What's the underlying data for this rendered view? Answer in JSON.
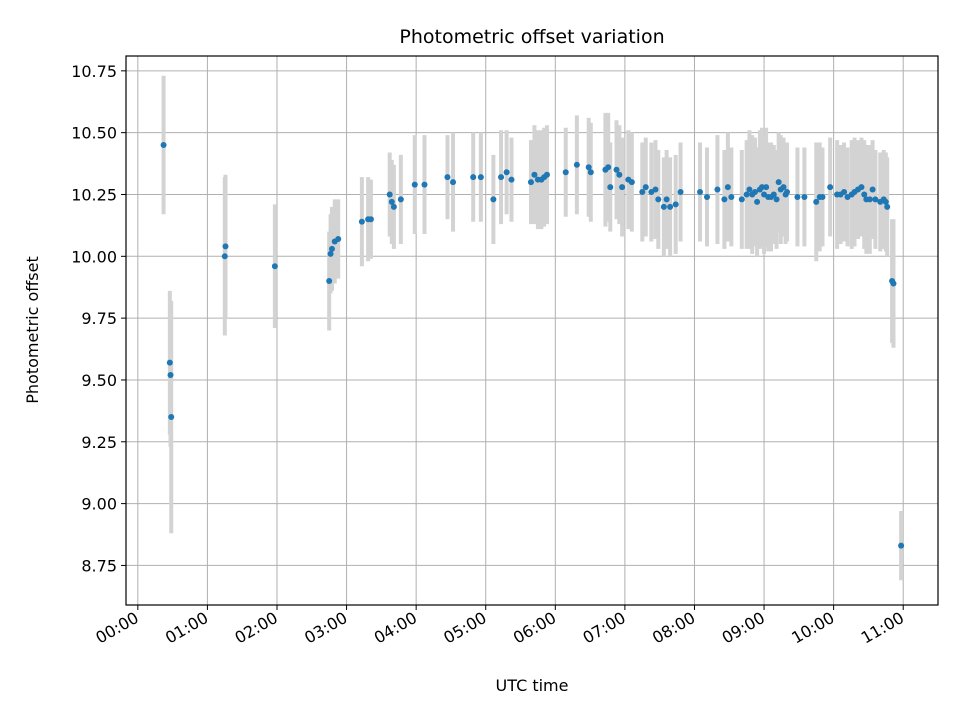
{
  "chart_data": {
    "type": "scatter",
    "title": "Photometric offset variation",
    "xlabel": "UTC time",
    "ylabel": "Photometric offset",
    "x_unit": "hours (UTC)",
    "xlim": [
      -0.17,
      11.5
    ],
    "ylim": [
      8.59,
      10.81
    ],
    "x_ticks": [
      0,
      1,
      2,
      3,
      4,
      5,
      6,
      7,
      8,
      9,
      10,
      11
    ],
    "x_tick_labels": [
      "00:00",
      "01:00",
      "02:00",
      "03:00",
      "04:00",
      "05:00",
      "06:00",
      "07:00",
      "08:00",
      "09:00",
      "10:00",
      "11:00"
    ],
    "y_ticks": [
      8.75,
      9.0,
      9.25,
      9.5,
      9.75,
      10.0,
      10.25,
      10.5,
      10.75
    ],
    "y_tick_labels": [
      "8.75",
      "9.00",
      "9.25",
      "9.50",
      "9.75",
      "10.00",
      "10.25",
      "10.50",
      "10.75"
    ],
    "grid": true,
    "marker_color": "#1f77b4",
    "errorbar_color": "#d3d3d3",
    "series": [
      {
        "points": [
          [
            0.37,
            10.45,
            0.28
          ],
          [
            0.46,
            9.57,
            0.29
          ],
          [
            0.47,
            9.52,
            0.29
          ],
          [
            0.48,
            9.35,
            0.47
          ],
          [
            1.25,
            10.0,
            0.32
          ],
          [
            1.26,
            10.04,
            0.29
          ],
          [
            1.97,
            9.96,
            0.25
          ],
          [
            2.75,
            9.9,
            0.2
          ],
          [
            2.77,
            10.01,
            0.16
          ],
          [
            2.79,
            10.03,
            0.17
          ],
          [
            2.83,
            10.06,
            0.17
          ],
          [
            2.88,
            10.07,
            0.16
          ],
          [
            3.22,
            10.14,
            0.18
          ],
          [
            3.31,
            10.15,
            0.17
          ],
          [
            3.35,
            10.15,
            0.16
          ],
          [
            3.62,
            10.25,
            0.17
          ],
          [
            3.65,
            10.22,
            0.17
          ],
          [
            3.68,
            10.2,
            0.17
          ],
          [
            3.78,
            10.23,
            0.18
          ],
          [
            3.98,
            10.29,
            0.2
          ],
          [
            4.12,
            10.29,
            0.2
          ],
          [
            4.45,
            10.32,
            0.17
          ],
          [
            4.53,
            10.3,
            0.2
          ],
          [
            4.82,
            10.32,
            0.18
          ],
          [
            4.93,
            10.32,
            0.18
          ],
          [
            5.11,
            10.23,
            0.18
          ],
          [
            5.22,
            10.32,
            0.19
          ],
          [
            5.3,
            10.34,
            0.17
          ],
          [
            5.37,
            10.31,
            0.17
          ],
          [
            5.65,
            10.3,
            0.17
          ],
          [
            5.7,
            10.33,
            0.2
          ],
          [
            5.75,
            10.31,
            0.2
          ],
          [
            5.8,
            10.31,
            0.2
          ],
          [
            5.84,
            10.32,
            0.2
          ],
          [
            5.88,
            10.33,
            0.2
          ],
          [
            6.15,
            10.34,
            0.18
          ],
          [
            6.31,
            10.37,
            0.2
          ],
          [
            6.48,
            10.36,
            0.2
          ],
          [
            6.51,
            10.34,
            0.2
          ],
          [
            6.72,
            10.35,
            0.23
          ],
          [
            6.76,
            10.36,
            0.22
          ],
          [
            6.79,
            10.28,
            0.18
          ],
          [
            6.88,
            10.35,
            0.2
          ],
          [
            6.92,
            10.33,
            0.2
          ],
          [
            6.96,
            10.28,
            0.2
          ],
          [
            7.05,
            10.31,
            0.2
          ],
          [
            7.1,
            10.3,
            0.2
          ],
          [
            7.25,
            10.26,
            0.2
          ],
          [
            7.3,
            10.28,
            0.2
          ],
          [
            7.38,
            10.26,
            0.2
          ],
          [
            7.44,
            10.27,
            0.2
          ],
          [
            7.48,
            10.23,
            0.2
          ],
          [
            7.56,
            10.2,
            0.2
          ],
          [
            7.6,
            10.23,
            0.2
          ],
          [
            7.65,
            10.2,
            0.2
          ],
          [
            7.73,
            10.21,
            0.2
          ],
          [
            7.8,
            10.26,
            0.2
          ],
          [
            8.08,
            10.26,
            0.2
          ],
          [
            8.18,
            10.24,
            0.2
          ],
          [
            8.33,
            10.27,
            0.22
          ],
          [
            8.43,
            10.23,
            0.2
          ],
          [
            8.48,
            10.28,
            0.22
          ],
          [
            8.53,
            10.24,
            0.2
          ],
          [
            8.68,
            10.23,
            0.2
          ],
          [
            8.75,
            10.25,
            0.22
          ],
          [
            8.79,
            10.27,
            0.24
          ],
          [
            8.83,
            10.25,
            0.24
          ],
          [
            8.87,
            10.26,
            0.22
          ],
          [
            8.9,
            10.22,
            0.22
          ],
          [
            8.94,
            10.27,
            0.24
          ],
          [
            8.97,
            10.28,
            0.24
          ],
          [
            9.0,
            10.25,
            0.24
          ],
          [
            9.03,
            10.28,
            0.24
          ],
          [
            9.06,
            10.24,
            0.22
          ],
          [
            9.1,
            10.24,
            0.22
          ],
          [
            9.14,
            10.25,
            0.2
          ],
          [
            9.18,
            10.23,
            0.2
          ],
          [
            9.21,
            10.3,
            0.2
          ],
          [
            9.24,
            10.27,
            0.22
          ],
          [
            9.28,
            10.28,
            0.2
          ],
          [
            9.31,
            10.25,
            0.2
          ],
          [
            9.33,
            10.26,
            0.2
          ],
          [
            9.48,
            10.24,
            0.2
          ],
          [
            9.58,
            10.24,
            0.2
          ],
          [
            9.75,
            10.22,
            0.24
          ],
          [
            9.8,
            10.24,
            0.22
          ],
          [
            9.84,
            10.24,
            0.2
          ],
          [
            9.95,
            10.28,
            0.2
          ],
          [
            10.05,
            10.25,
            0.22
          ],
          [
            10.1,
            10.25,
            0.2
          ],
          [
            10.15,
            10.26,
            0.2
          ],
          [
            10.2,
            10.24,
            0.2
          ],
          [
            10.26,
            10.25,
            0.22
          ],
          [
            10.3,
            10.26,
            0.22
          ],
          [
            10.35,
            10.27,
            0.2
          ],
          [
            10.4,
            10.28,
            0.2
          ],
          [
            10.44,
            10.25,
            0.22
          ],
          [
            10.47,
            10.23,
            0.22
          ],
          [
            10.52,
            10.23,
            0.22
          ],
          [
            10.56,
            10.27,
            0.2
          ],
          [
            10.6,
            10.23,
            0.2
          ],
          [
            10.67,
            10.22,
            0.2
          ],
          [
            10.72,
            10.23,
            0.2
          ],
          [
            10.75,
            10.22,
            0.2
          ],
          [
            10.77,
            10.2,
            0.2
          ],
          [
            10.84,
            9.9,
            0.25
          ],
          [
            10.86,
            9.89,
            0.26
          ],
          [
            10.97,
            8.83,
            0.14
          ]
        ]
      }
    ]
  }
}
